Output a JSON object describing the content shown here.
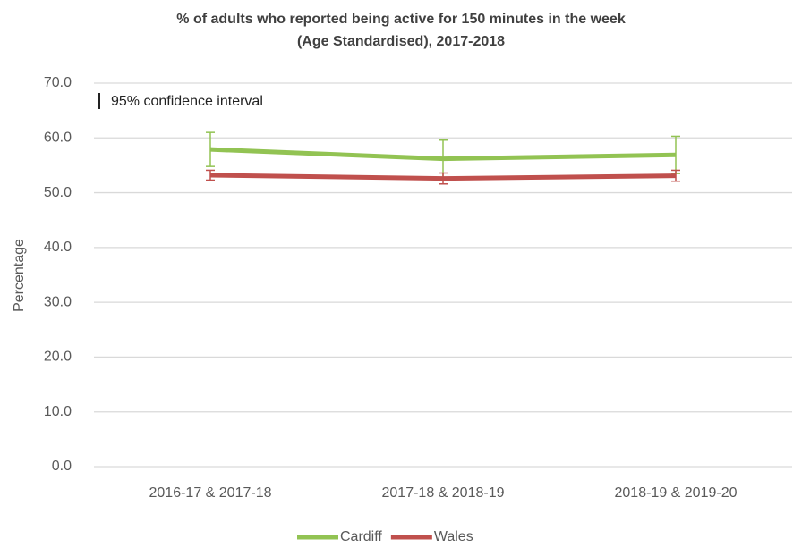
{
  "chart_data": {
    "type": "line",
    "title": [
      "% of adults who reported being active for 150 minutes in the week",
      "(Age Standardised), 2017-2018"
    ],
    "y_label": "Percentage",
    "annotation": "95% confidence interval",
    "categories": [
      "2016-17 & 2017-18",
      "2017-18 & 2018-19",
      "2018-19 & 2019-20"
    ],
    "series": [
      {
        "name": "Cardiff",
        "color": "#92c353",
        "values": [
          57.9,
          56.2,
          56.9
        ],
        "errors": [
          3.1,
          3.4,
          3.4
        ]
      },
      {
        "name": "Wales",
        "color": "#c0504d",
        "values": [
          53.2,
          52.6,
          53.1
        ],
        "errors": [
          0.9,
          1.0,
          1.0
        ]
      }
    ],
    "ylim": [
      0,
      70
    ],
    "yticks": [
      {
        "value": 0,
        "label": "0.0"
      },
      {
        "value": 10,
        "label": "10.0"
      },
      {
        "value": 20,
        "label": "20.0"
      },
      {
        "value": 30,
        "label": "30.0"
      },
      {
        "value": 40,
        "label": "40.0"
      },
      {
        "value": 50,
        "label": "50.0"
      },
      {
        "value": 60,
        "label": "60.0"
      },
      {
        "value": 70,
        "label": "70.0"
      }
    ],
    "grid": true,
    "legend": "bottom"
  }
}
